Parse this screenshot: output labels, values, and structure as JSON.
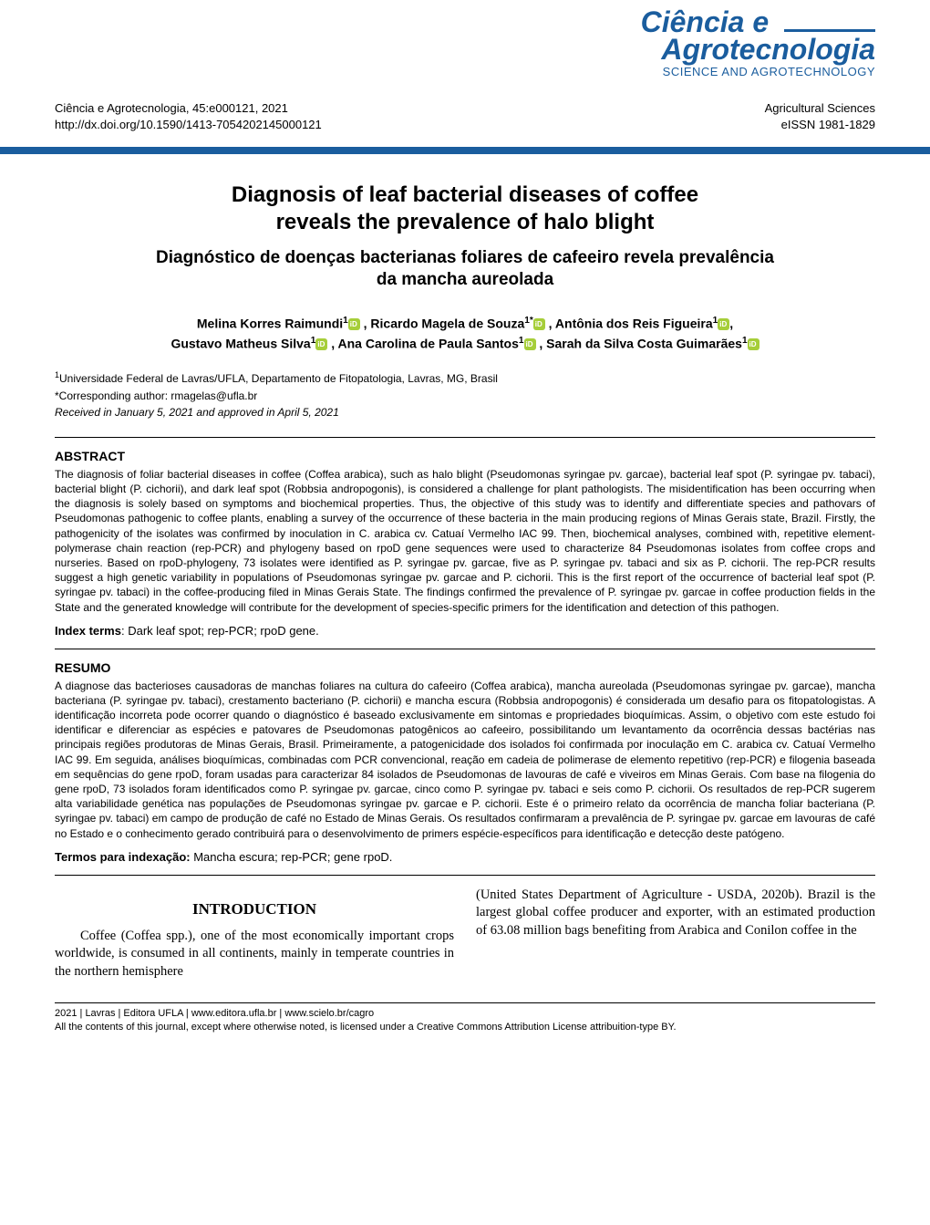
{
  "journal": {
    "logo_line1": "Ciência e",
    "logo_line2": "Agrotecnologia",
    "logo_subtitle": "SCIENCE AND AGROTECHNOLOGY",
    "brand_color": "#1a5d9e",
    "orcid_color": "#a6ce39"
  },
  "header": {
    "citation": "Ciência e Agrotecnologia, 45:e000121, 2021",
    "doi": "http://dx.doi.org/10.1590/1413-7054202145000121",
    "section": "Agricultural Sciences",
    "eissn": "eISSN 1981-1829"
  },
  "title": {
    "en_line1": "Diagnosis of leaf bacterial diseases of coffee",
    "en_line2": "reveals the prevalence of halo blight",
    "pt_line1": "Diagnóstico de doenças bacterianas foliares de cafeeiro revela prevalência",
    "pt_line2": "da mancha aureolada"
  },
  "authors": {
    "line1_a": "Melina Korres Raimundi",
    "line1_b": ", Ricardo Magela de Souza",
    "line1_c": ", Antônia dos Reis Figueira",
    "line2_a": "Gustavo Matheus Silva",
    "line2_b": ", Ana Carolina de Paula Santos",
    "line2_c": ", Sarah da Silva Costa Guimarães",
    "sup1": "1",
    "sup1star": "1*"
  },
  "affiliation": {
    "line": "Universidade Federal de Lavras/UFLA, Departamento de Fitopatologia, Lavras, MG, Brasil",
    "corr": "*Corresponding author: rmagelas@ufla.br",
    "received": "Received in January 5, 2021 and approved in April 5, 2021"
  },
  "abstract": {
    "label": "ABSTRACT",
    "text": "The diagnosis of foliar bacterial diseases in coffee (Coffea arabica), such as halo blight (Pseudomonas syringae pv. garcae), bacterial leaf spot (P. syringae pv. tabaci), bacterial blight (P. cichorii), and dark leaf spot (Robbsia andropogonis), is considered a challenge for plant pathologists. The misidentification has been occurring when the diagnosis is solely based on symptoms and biochemical properties. Thus, the objective of this study was to identify and differentiate species and pathovars of Pseudomonas pathogenic to coffee plants, enabling a survey of the occurrence of these bacteria in the main producing regions of Minas Gerais state, Brazil. Firstly, the pathogenicity of the isolates was confirmed by inoculation in C. arabica cv. Catuaí Vermelho IAC 99. Then, biochemical analyses, combined with, repetitive element-polymerase chain reaction (rep-PCR) and phylogeny based on rpoD gene sequences were used to characterize 84 Pseudomonas isolates from coffee crops and nurseries. Based on rpoD-phylogeny, 73 isolates were identified as P. syringae pv. garcae, five as P. syringae pv. tabaci and six as P. cichorii. The rep-PCR results suggest a high genetic variability in populations of Pseudomonas syringae pv. garcae and P. cichorii. This is the first report of the occurrence of bacterial leaf spot (P. syringae pv. tabaci) in the coffee-producing filed in Minas Gerais State. The findings confirmed the prevalence of P. syringae pv. garcae in coffee production fields in the State and the generated knowledge will contribute for the development of species-specific primers for the identification and detection of this pathogen.",
    "index_label": "Index terms",
    "index_text": ": Dark leaf spot; rep-PCR; rpoD gene."
  },
  "resumo": {
    "label": "RESUMO",
    "text": "A diagnose das bacterioses causadoras de manchas foliares na cultura do cafeeiro (Coffea arabica), mancha aureolada (Pseudomonas syringae pv. garcae), mancha bacteriana (P. syringae pv. tabaci), crestamento bacteriano (P. cichorii) e mancha escura (Robbsia andropogonis) é considerada um desafio para os fitopatologistas. A identificação incorreta pode ocorrer quando o diagnóstico é baseado exclusivamente em sintomas e propriedades bioquímicas. Assim, o objetivo com este estudo foi identificar e diferenciar as espécies e patovares de Pseudomonas patogênicos ao cafeeiro, possibilitando um levantamento da ocorrência dessas bactérias nas principais regiões produtoras de Minas Gerais, Brasil. Primeiramente, a patogenicidade dos isolados foi confirmada por inoculação em C. arabica cv. Catuaí Vermelho IAC 99. Em seguida, análises bioquímicas, combinadas com PCR convencional, reação em cadeia de polimerase de elemento repetitivo (rep-PCR) e filogenia baseada em sequências do gene rpoD, foram usadas para caracterizar 84 isolados de Pseudomonas de lavouras de café e viveiros em Minas Gerais. Com base na filogenia do gene rpoD, 73 isolados foram identificados como P. syringae pv. garcae, cinco como P. syringae pv. tabaci e seis como P. cichorii. Os resultados de rep-PCR sugerem alta variabilidade genética nas populações de Pseudomonas syringae pv. garcae e P. cichorii. Este é o primeiro relato da ocorrência de mancha foliar bacteriana (P. syringae pv. tabaci) em campo de produção de café no Estado de Minas Gerais. Os resultados confirmaram a prevalência de P. syringae pv. garcae em lavouras de café no Estado e o conhecimento gerado contribuirá para o desenvolvimento de primers espécie-específicos para identificação e detecção deste patógeno.",
    "index_label": "Termos para indexação:",
    "index_text": " Mancha escura; rep-PCR; gene rpoD."
  },
  "intro": {
    "heading": "INTRODUCTION",
    "col1": "Coffee (Coffea spp.), one of the most economically important crops worldwide, is consumed in all continents, mainly in temperate countries in the northern hemisphere",
    "col2": "(United States Department of Agriculture - USDA, 2020b). Brazil is the largest global coffee producer and exporter, with an estimated production of 63.08 million bags benefiting from Arabica and Conilon coffee in the"
  },
  "footer": {
    "line1": "2021 | Lavras | Editora UFLA | www.editora.ufla.br | www.scielo.br/cagro",
    "line2": "All the contents of this journal, except where otherwise noted, is licensed under a Creative Commons Attribution License attribuition-type BY."
  }
}
